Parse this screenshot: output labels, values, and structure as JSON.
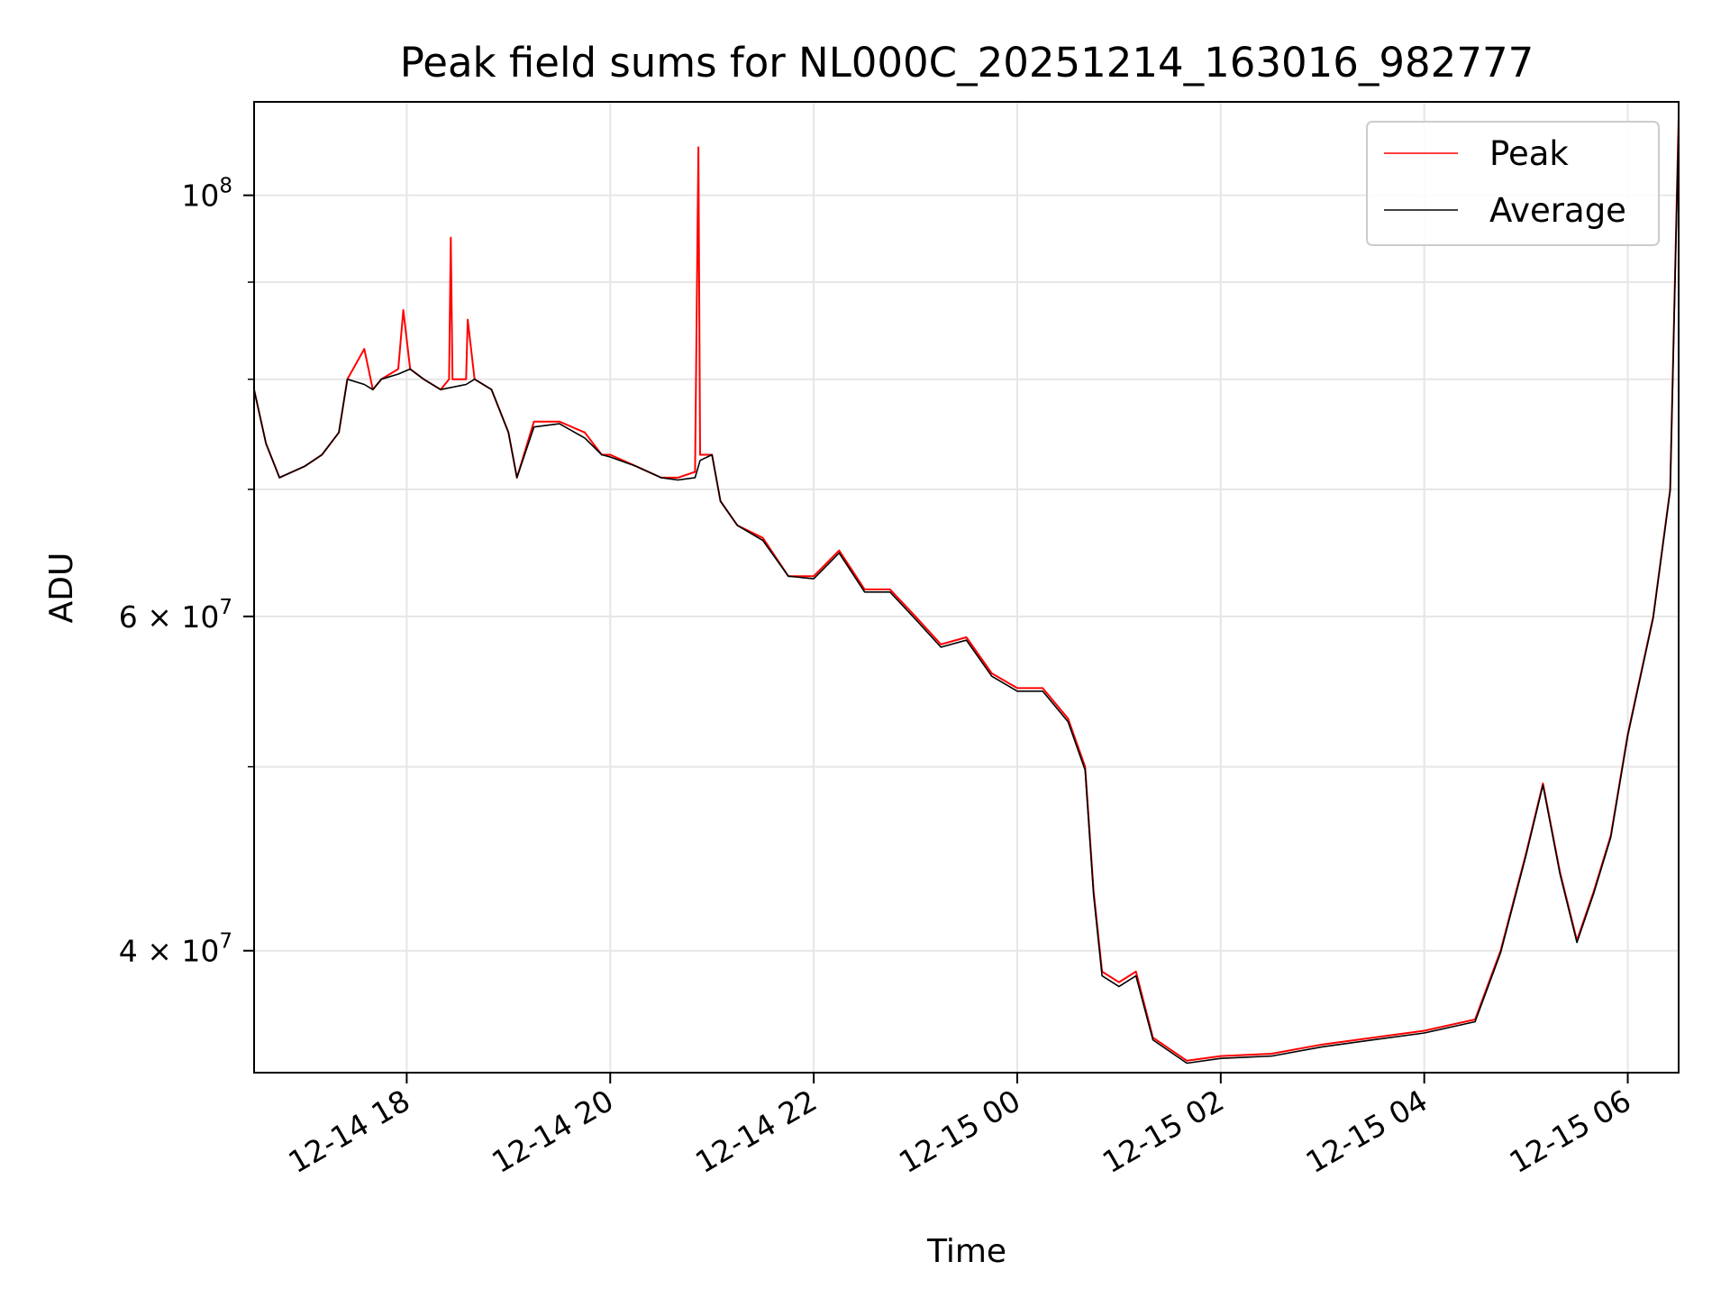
{
  "chart_data": {
    "type": "line",
    "title": "Peak field sums for NL000C_20251214_163016_982777",
    "xlabel": "Time",
    "ylabel": "ADU",
    "y_scale": "log",
    "ylim": [
      34500000,
      112000000
    ],
    "xlim": [
      "2025-12-14T16:30",
      "2025-12-15T06:30"
    ],
    "grid": true,
    "legend_position": "top-right",
    "x_ticks": [
      {
        "t": "2025-12-14T18:00",
        "label": "12-14 18"
      },
      {
        "t": "2025-12-14T20:00",
        "label": "12-14 20"
      },
      {
        "t": "2025-12-14T22:00",
        "label": "12-14 22"
      },
      {
        "t": "2025-12-15T00:00",
        "label": "12-15 00"
      },
      {
        "t": "2025-12-15T02:00",
        "label": "12-15 02"
      },
      {
        "t": "2025-12-15T04:00",
        "label": "12-15 04"
      },
      {
        "t": "2025-12-15T06:00",
        "label": "12-15 06"
      }
    ],
    "y_ticks_major": [
      {
        "v": 40000000,
        "base": "4 × 10",
        "exp": "7"
      },
      {
        "v": 60000000,
        "base": "6 × 10",
        "exp": "7"
      },
      {
        "v": 100000000,
        "base": "10",
        "exp": "8"
      }
    ],
    "y_ticks_minor": [
      50000000,
      70000000,
      80000000,
      90000000
    ],
    "series": [
      {
        "name": "Peak",
        "color": "#ff0000",
        "points": [
          [
            "2025-12-14T16:30",
            79000000
          ],
          [
            "2025-12-14T16:37",
            74000000
          ],
          [
            "2025-12-14T16:45",
            71000000
          ],
          [
            "2025-12-14T17:00",
            72000000
          ],
          [
            "2025-12-14T17:10",
            73000000
          ],
          [
            "2025-12-14T17:20",
            75000000
          ],
          [
            "2025-12-14T17:25",
            80000000
          ],
          [
            "2025-12-14T17:35",
            83000000
          ],
          [
            "2025-12-14T17:40",
            79000000
          ],
          [
            "2025-12-14T17:45",
            80000000
          ],
          [
            "2025-12-14T17:55",
            81000000
          ],
          [
            "2025-12-14T17:58",
            87000000
          ],
          [
            "2025-12-14T18:02",
            81000000
          ],
          [
            "2025-12-14T18:10",
            80000000
          ],
          [
            "2025-12-14T18:20",
            79000000
          ],
          [
            "2025-12-14T18:25",
            80000000
          ],
          [
            "2025-12-14T18:26",
            95000000
          ],
          [
            "2025-12-14T18:27",
            80000000
          ],
          [
            "2025-12-14T18:35",
            80000000
          ],
          [
            "2025-12-14T18:36",
            86000000
          ],
          [
            "2025-12-14T18:40",
            80000000
          ],
          [
            "2025-12-14T18:50",
            79000000
          ],
          [
            "2025-12-14T19:00",
            75000000
          ],
          [
            "2025-12-14T19:05",
            71000000
          ],
          [
            "2025-12-14T19:15",
            76000000
          ],
          [
            "2025-12-14T19:30",
            76000000
          ],
          [
            "2025-12-14T19:45",
            75000000
          ],
          [
            "2025-12-14T19:55",
            73000000
          ],
          [
            "2025-12-14T20:00",
            73000000
          ],
          [
            "2025-12-14T20:15",
            72000000
          ],
          [
            "2025-12-14T20:30",
            71000000
          ],
          [
            "2025-12-14T20:40",
            71000000
          ],
          [
            "2025-12-14T20:50",
            71500000
          ],
          [
            "2025-12-14T20:52",
            106000000
          ],
          [
            "2025-12-14T20:53",
            73000000
          ],
          [
            "2025-12-14T21:00",
            73000000
          ],
          [
            "2025-12-14T21:05",
            69000000
          ],
          [
            "2025-12-14T21:15",
            67000000
          ],
          [
            "2025-12-14T21:30",
            66000000
          ],
          [
            "2025-12-14T21:45",
            63000000
          ],
          [
            "2025-12-14T22:00",
            63000000
          ],
          [
            "2025-12-14T22:15",
            65000000
          ],
          [
            "2025-12-14T22:30",
            62000000
          ],
          [
            "2025-12-14T22:45",
            62000000
          ],
          [
            "2025-12-14T23:00",
            60000000
          ],
          [
            "2025-12-14T23:15",
            58000000
          ],
          [
            "2025-12-14T23:30",
            58500000
          ],
          [
            "2025-12-14T23:45",
            56000000
          ],
          [
            "2025-12-15T00:00",
            55000000
          ],
          [
            "2025-12-15T00:15",
            55000000
          ],
          [
            "2025-12-15T00:30",
            53000000
          ],
          [
            "2025-12-15T00:40",
            50000000
          ],
          [
            "2025-12-15T00:45",
            43000000
          ],
          [
            "2025-12-15T00:50",
            39000000
          ],
          [
            "2025-12-15T01:00",
            38500000
          ],
          [
            "2025-12-15T01:10",
            39000000
          ],
          [
            "2025-12-15T01:20",
            36000000
          ],
          [
            "2025-12-15T01:40",
            35000000
          ],
          [
            "2025-12-15T02:00",
            35200000
          ],
          [
            "2025-12-15T02:30",
            35300000
          ],
          [
            "2025-12-15T03:00",
            35700000
          ],
          [
            "2025-12-15T03:30",
            36000000
          ],
          [
            "2025-12-15T04:00",
            36300000
          ],
          [
            "2025-12-15T04:30",
            36800000
          ],
          [
            "2025-12-15T04:45",
            40000000
          ],
          [
            "2025-12-15T05:00",
            45000000
          ],
          [
            "2025-12-15T05:10",
            49000000
          ],
          [
            "2025-12-15T05:20",
            44000000
          ],
          [
            "2025-12-15T05:30",
            40500000
          ],
          [
            "2025-12-15T05:40",
            43000000
          ],
          [
            "2025-12-15T05:50",
            46000000
          ],
          [
            "2025-12-15T06:00",
            52000000
          ],
          [
            "2025-12-15T06:15",
            60000000
          ],
          [
            "2025-12-15T06:25",
            70000000
          ],
          [
            "2025-12-15T06:30",
            110000000
          ]
        ]
      },
      {
        "name": "Average",
        "color": "#000000",
        "points": [
          [
            "2025-12-14T16:30",
            79000000
          ],
          [
            "2025-12-14T16:37",
            74000000
          ],
          [
            "2025-12-14T16:45",
            71000000
          ],
          [
            "2025-12-14T17:00",
            72000000
          ],
          [
            "2025-12-14T17:10",
            73000000
          ],
          [
            "2025-12-14T17:20",
            75000000
          ],
          [
            "2025-12-14T17:25",
            80000000
          ],
          [
            "2025-12-14T17:35",
            79500000
          ],
          [
            "2025-12-14T17:40",
            79000000
          ],
          [
            "2025-12-14T17:45",
            80000000
          ],
          [
            "2025-12-14T17:55",
            80500000
          ],
          [
            "2025-12-14T18:02",
            81000000
          ],
          [
            "2025-12-14T18:10",
            80000000
          ],
          [
            "2025-12-14T18:20",
            79000000
          ],
          [
            "2025-12-14T18:35",
            79500000
          ],
          [
            "2025-12-14T18:40",
            80000000
          ],
          [
            "2025-12-14T18:50",
            79000000
          ],
          [
            "2025-12-14T19:00",
            75000000
          ],
          [
            "2025-12-14T19:05",
            71000000
          ],
          [
            "2025-12-14T19:15",
            75500000
          ],
          [
            "2025-12-14T19:30",
            75800000
          ],
          [
            "2025-12-14T19:45",
            74500000
          ],
          [
            "2025-12-14T19:55",
            73000000
          ],
          [
            "2025-12-14T20:00",
            72800000
          ],
          [
            "2025-12-14T20:15",
            72000000
          ],
          [
            "2025-12-14T20:30",
            71000000
          ],
          [
            "2025-12-14T20:40",
            70800000
          ],
          [
            "2025-12-14T20:50",
            71000000
          ],
          [
            "2025-12-14T20:53",
            72500000
          ],
          [
            "2025-12-14T21:00",
            73000000
          ],
          [
            "2025-12-14T21:05",
            69000000
          ],
          [
            "2025-12-14T21:15",
            67000000
          ],
          [
            "2025-12-14T21:30",
            65800000
          ],
          [
            "2025-12-14T21:45",
            63000000
          ],
          [
            "2025-12-14T22:00",
            62800000
          ],
          [
            "2025-12-14T22:15",
            64800000
          ],
          [
            "2025-12-14T22:30",
            61800000
          ],
          [
            "2025-12-14T22:45",
            61800000
          ],
          [
            "2025-12-14T23:00",
            59800000
          ],
          [
            "2025-12-14T23:15",
            57800000
          ],
          [
            "2025-12-14T23:30",
            58300000
          ],
          [
            "2025-12-14T23:45",
            55800000
          ],
          [
            "2025-12-15T00:00",
            54800000
          ],
          [
            "2025-12-15T00:15",
            54800000
          ],
          [
            "2025-12-15T00:30",
            52800000
          ],
          [
            "2025-12-15T00:40",
            49800000
          ],
          [
            "2025-12-15T00:45",
            42800000
          ],
          [
            "2025-12-15T00:50",
            38800000
          ],
          [
            "2025-12-15T01:00",
            38300000
          ],
          [
            "2025-12-15T01:10",
            38800000
          ],
          [
            "2025-12-15T01:20",
            35900000
          ],
          [
            "2025-12-15T01:40",
            34900000
          ],
          [
            "2025-12-15T02:00",
            35100000
          ],
          [
            "2025-12-15T02:30",
            35200000
          ],
          [
            "2025-12-15T03:00",
            35600000
          ],
          [
            "2025-12-15T03:30",
            35900000
          ],
          [
            "2025-12-15T04:00",
            36200000
          ],
          [
            "2025-12-15T04:30",
            36700000
          ],
          [
            "2025-12-15T04:45",
            39900000
          ],
          [
            "2025-12-15T05:00",
            44900000
          ],
          [
            "2025-12-15T05:10",
            48900000
          ],
          [
            "2025-12-15T05:20",
            43900000
          ],
          [
            "2025-12-15T05:30",
            40400000
          ],
          [
            "2025-12-15T05:40",
            42900000
          ],
          [
            "2025-12-15T05:50",
            45900000
          ],
          [
            "2025-12-15T06:00",
            51900000
          ],
          [
            "2025-12-15T06:15",
            59900000
          ],
          [
            "2025-12-15T06:25",
            69900000
          ],
          [
            "2025-12-15T06:30",
            109000000
          ]
        ]
      }
    ]
  }
}
